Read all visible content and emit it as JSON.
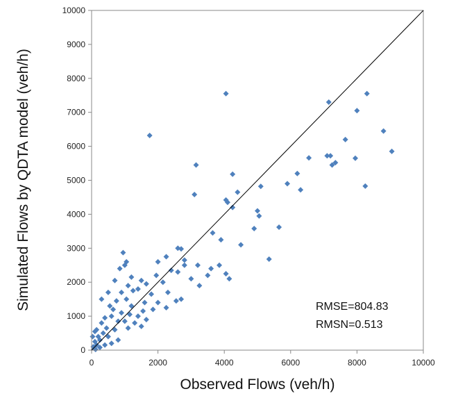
{
  "chart_data": {
    "type": "scatter",
    "title": "",
    "xlabel": "Observed Flows (veh/h)",
    "ylabel": "Simulated Flows by QDTA model (veh/h)",
    "xlim": [
      0,
      10000
    ],
    "ylim": [
      0,
      10000
    ],
    "xticks": [
      "0",
      "2000",
      "4000",
      "6000",
      "8000",
      "10000"
    ],
    "yticks": [
      "0",
      "1000",
      "2000",
      "3000",
      "4000",
      "5000",
      "6000",
      "7000",
      "8000",
      "9000",
      "10000"
    ],
    "grid": false,
    "legend": "none",
    "reference_line": {
      "from": [
        0,
        0
      ],
      "to": [
        10000,
        10000
      ],
      "color": "#000000"
    },
    "marker": {
      "shape": "diamond",
      "color": "#4F81BD"
    },
    "annotations": [
      "RMSE=804.83",
      "RMSN=0.513"
    ],
    "points": [
      [
        4050,
        7550
      ],
      [
        8300,
        7550
      ],
      [
        7150,
        7300
      ],
      [
        8000,
        7050
      ],
      [
        1750,
        6320
      ],
      [
        7650,
        6200
      ],
      [
        8800,
        6450
      ],
      [
        9050,
        5850
      ],
      [
        6550,
        5660
      ],
      [
        7950,
        5650
      ],
      [
        7100,
        5720
      ],
      [
        7200,
        5720
      ],
      [
        7250,
        5450
      ],
      [
        7350,
        5520
      ],
      [
        6200,
        5200
      ],
      [
        5900,
        4900
      ],
      [
        6300,
        4720
      ],
      [
        8250,
        4830
      ],
      [
        3150,
        5450
      ],
      [
        4250,
        5180
      ],
      [
        5100,
        4820
      ],
      [
        4400,
        4650
      ],
      [
        4050,
        4420
      ],
      [
        4100,
        4350
      ],
      [
        4250,
        4200
      ],
      [
        3100,
        4580
      ],
      [
        5000,
        4100
      ],
      [
        5050,
        3950
      ],
      [
        4900,
        3580
      ],
      [
        5650,
        3620
      ],
      [
        3650,
        3450
      ],
      [
        3900,
        3250
      ],
      [
        4500,
        3100
      ],
      [
        5350,
        2680
      ],
      [
        4050,
        2250
      ],
      [
        4150,
        2100
      ],
      [
        3850,
        2500
      ],
      [
        3200,
        2500
      ],
      [
        3600,
        2400
      ],
      [
        3500,
        2200
      ],
      [
        2600,
        3000
      ],
      [
        2700,
        2980
      ],
      [
        2250,
        2750
      ],
      [
        2000,
        2600
      ],
      [
        2800,
        2650
      ],
      [
        2800,
        2500
      ],
      [
        2400,
        2350
      ],
      [
        2600,
        2300
      ],
      [
        3000,
        2100
      ],
      [
        3250,
        1900
      ],
      [
        2700,
        1500
      ],
      [
        2550,
        1450
      ],
      [
        2300,
        1700
      ],
      [
        2150,
        2000
      ],
      [
        1950,
        2200
      ],
      [
        1800,
        1650
      ],
      [
        1650,
        1950
      ],
      [
        1500,
        2050
      ],
      [
        1400,
        1800
      ],
      [
        1200,
        2150
      ],
      [
        1050,
        2600
      ],
      [
        1000,
        2500
      ],
      [
        850,
        2400
      ],
      [
        950,
        2870
      ],
      [
        700,
        2050
      ],
      [
        500,
        1700
      ],
      [
        300,
        1500
      ],
      [
        1100,
        1900
      ],
      [
        1250,
        1750
      ],
      [
        1600,
        1400
      ],
      [
        1550,
        1150
      ],
      [
        1400,
        1000
      ],
      [
        1200,
        1300
      ],
      [
        1500,
        700
      ],
      [
        1650,
        900
      ],
      [
        2000,
        1400
      ],
      [
        2250,
        1250
      ],
      [
        1850,
        1200
      ],
      [
        1050,
        1500
      ],
      [
        900,
        1700
      ],
      [
        750,
        1450
      ],
      [
        650,
        1200
      ],
      [
        550,
        1300
      ],
      [
        600,
        1000
      ],
      [
        400,
        950
      ],
      [
        300,
        800
      ],
      [
        150,
        600
      ],
      [
        200,
        400
      ],
      [
        100,
        250
      ],
      [
        50,
        100
      ],
      [
        80,
        50
      ],
      [
        150,
        150
      ],
      [
        250,
        300
      ],
      [
        350,
        500
      ],
      [
        450,
        650
      ],
      [
        500,
        400
      ],
      [
        700,
        600
      ],
      [
        800,
        850
      ],
      [
        1000,
        850
      ],
      [
        900,
        1100
      ],
      [
        1150,
        1050
      ],
      [
        1300,
        800
      ],
      [
        1100,
        650
      ],
      [
        800,
        300
      ],
      [
        600,
        200
      ],
      [
        400,
        150
      ],
      [
        250,
        80
      ],
      [
        120,
        20
      ],
      [
        30,
        400
      ],
      [
        100,
        550
      ]
    ]
  }
}
